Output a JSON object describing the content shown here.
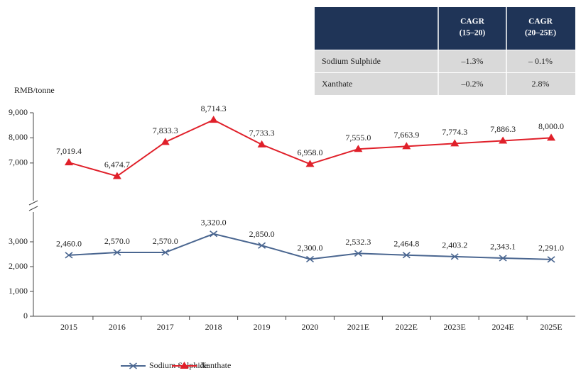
{
  "chart_data": {
    "type": "line",
    "y_axis_label": "RMB/tonne",
    "categories": [
      "2015",
      "2016",
      "2017",
      "2018",
      "2019",
      "2020",
      "2021E",
      "2022E",
      "2023E",
      "2024E",
      "2025E"
    ],
    "series": [
      {
        "name": "Sodium Sulphide",
        "color": "#4a6690",
        "marker": "x",
        "values": [
          2460.0,
          2570.0,
          2570.0,
          3320.0,
          2850.0,
          2300.0,
          2532.3,
          2464.8,
          2403.2,
          2343.1,
          2291.0
        ],
        "value_labels": [
          "2,460.0",
          "2,570.0",
          "2,570.0",
          "3,320.0",
          "2,850.0",
          "2,300.0",
          "2,532.3",
          "2,464.8",
          "2,403.2",
          "2,343.1",
          "2,291.0"
        ]
      },
      {
        "name": "Xanthate",
        "color": "#e0202a",
        "marker": "triangle",
        "values": [
          7019.4,
          6474.7,
          7833.3,
          8714.3,
          7733.3,
          6958.0,
          7555.0,
          7663.9,
          7774.3,
          7886.3,
          8000.0
        ],
        "value_labels": [
          "7,019.4",
          "6,474.7",
          "7,833.3",
          "8,714.3",
          "7,733.3",
          "6,958.0",
          "7,555.0",
          "7,663.9",
          "7,774.3",
          "7,886.3",
          "8,000.0"
        ]
      }
    ],
    "axis_break": {
      "lower_ylim": [
        0,
        4200
      ],
      "upper_ylim": [
        5500,
        9000
      ]
    },
    "yticks": [
      0,
      {
        "value": 1000,
        "label": "1,000"
      },
      {
        "value": 2000,
        "label": "2,000"
      },
      {
        "value": 3000,
        "label": "3,000"
      },
      {
        "value": 7000,
        "label": "7,000"
      },
      {
        "value": 8000,
        "label": "8,000"
      },
      {
        "value": 9000,
        "label": "9,000"
      }
    ],
    "legend": "bottom"
  },
  "table": {
    "header": [
      [
        "CAGR",
        "(15–20)"
      ],
      [
        "CAGR",
        "(20–25E)"
      ]
    ],
    "rows": [
      [
        "Sodium Sulphide",
        "–1.3%",
        "– 0.1%"
      ],
      [
        "Xanthate",
        "–0.2%",
        "2.8%"
      ]
    ]
  }
}
